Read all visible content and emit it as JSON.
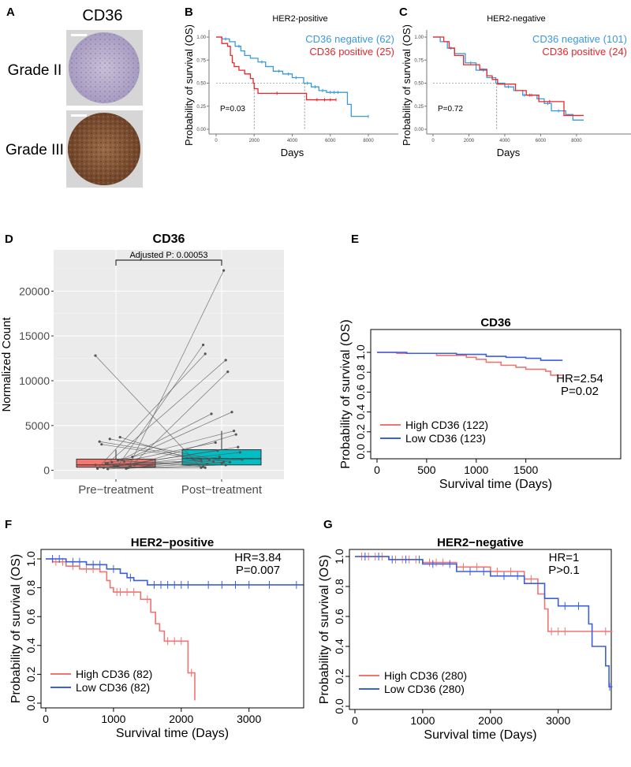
{
  "panels": {
    "A": {
      "letter": "A",
      "title": "CD36",
      "rows": [
        "Grade II",
        "Grade III"
      ]
    },
    "B": {
      "letter": "B"
    },
    "C": {
      "letter": "C"
    },
    "D": {
      "letter": "D"
    },
    "E": {
      "letter": "E"
    },
    "F": {
      "letter": "F"
    },
    "G": {
      "letter": "G"
    }
  },
  "colors": {
    "km_blue": "#3a9ad9",
    "km_red": "#e8262b",
    "surv_red": "#f07470",
    "surv_blue": "#3a5fe0",
    "box_pre": "#f8766d",
    "box_post": "#00bfc4",
    "ggplot_bg": "#ebebeb"
  },
  "chart_data": [
    {
      "id": "B",
      "type": "line",
      "subtype": "kaplan-meier",
      "title": "HER2-positive",
      "xlabel": "Days",
      "ylabel": "Probability of survival (OS)",
      "xlim": [
        0,
        8000
      ],
      "ylim": [
        0,
        1
      ],
      "xticks": [
        "0",
        "2000",
        "4000",
        "6000",
        "8000"
      ],
      "yticks": [
        "0.00",
        "0.25",
        "0.50",
        "0.75",
        "1.00"
      ],
      "annotation": "P=0.03",
      "median_lines": [
        2000,
        4650
      ],
      "series": [
        {
          "name": "CD36 negative (62)",
          "color": "#3a9ad9",
          "steps": [
            [
              0,
              1
            ],
            [
              300,
              0.98
            ],
            [
              700,
              0.95
            ],
            [
              1000,
              0.9
            ],
            [
              1300,
              0.85
            ],
            [
              1500,
              0.8
            ],
            [
              1800,
              0.77
            ],
            [
              2200,
              0.73
            ],
            [
              2600,
              0.68
            ],
            [
              3000,
              0.63
            ],
            [
              3500,
              0.6
            ],
            [
              4000,
              0.56
            ],
            [
              4600,
              0.5
            ],
            [
              5000,
              0.46
            ],
            [
              5400,
              0.42
            ],
            [
              5800,
              0.4
            ],
            [
              6800,
              0.4
            ],
            [
              6900,
              0.27
            ],
            [
              7100,
              0.14
            ],
            [
              8000,
              0.14
            ]
          ],
          "censor": [
            500,
            1200,
            2400,
            3300,
            3800,
            4200,
            4800,
            5200,
            5600,
            6000,
            6200,
            6400,
            8000
          ]
        },
        {
          "name": "CD36 positive (25)",
          "color": "#e8262b",
          "steps": [
            [
              0,
              1
            ],
            [
              300,
              0.93
            ],
            [
              600,
              0.9
            ],
            [
              750,
              0.8
            ],
            [
              850,
              0.72
            ],
            [
              950,
              0.68
            ],
            [
              1200,
              0.64
            ],
            [
              1500,
              0.6
            ],
            [
              1800,
              0.55
            ],
            [
              1950,
              0.5
            ],
            [
              2000,
              0.44
            ],
            [
              2200,
              0.39
            ],
            [
              4700,
              0.39
            ],
            [
              4750,
              0.32
            ],
            [
              6300,
              0.32
            ]
          ],
          "censor": [
            3200,
            5300,
            5700,
            6000,
            6300
          ]
        }
      ]
    },
    {
      "id": "C",
      "type": "line",
      "subtype": "kaplan-meier",
      "title": "HER2-negative",
      "xlabel": "Days",
      "ylabel": "Probability of survival (OS)",
      "xlim": [
        0,
        8400
      ],
      "ylim": [
        0,
        1
      ],
      "xticks": [
        "0",
        "2000",
        "4000",
        "6000",
        "8000"
      ],
      "yticks": [
        "0.00",
        "0.25",
        "0.50",
        "0.75",
        "1.00"
      ],
      "annotation": "P=0.72",
      "median_lines": [
        3550
      ],
      "series": [
        {
          "name": "CD36 negative (101)",
          "color": "#3a9ad9",
          "steps": [
            [
              0,
              1
            ],
            [
              400,
              0.95
            ],
            [
              800,
              0.88
            ],
            [
              1200,
              0.82
            ],
            [
              1800,
              0.72
            ],
            [
              2400,
              0.64
            ],
            [
              3000,
              0.56
            ],
            [
              3500,
              0.5
            ],
            [
              4000,
              0.46
            ],
            [
              4500,
              0.42
            ],
            [
              5000,
              0.37
            ],
            [
              5800,
              0.33
            ],
            [
              6200,
              0.28
            ],
            [
              6600,
              0.2
            ],
            [
              7400,
              0.16
            ],
            [
              7800,
              0.1
            ],
            [
              8400,
              0.1
            ]
          ],
          "censor": [
            1000,
            2100,
            2800,
            3300,
            4200,
            5100,
            5500,
            6400,
            7000
          ]
        },
        {
          "name": "CD36 positive (24)",
          "color": "#e8262b",
          "steps": [
            [
              0,
              1
            ],
            [
              600,
              0.95
            ],
            [
              900,
              0.88
            ],
            [
              1200,
              0.8
            ],
            [
              1700,
              0.7
            ],
            [
              2600,
              0.65
            ],
            [
              3000,
              0.58
            ],
            [
              3300,
              0.54
            ],
            [
              3600,
              0.49
            ],
            [
              4600,
              0.42
            ],
            [
              5200,
              0.37
            ],
            [
              5900,
              0.3
            ],
            [
              7300,
              0.15
            ],
            [
              8400,
              0.15
            ]
          ],
          "censor": [
            5400,
            6500
          ]
        }
      ]
    },
    {
      "id": "D",
      "type": "box",
      "subtype": "paired",
      "title": "CD36",
      "xlabel": "",
      "ylabel": "Normalized Count",
      "annotation": "Adjusted P: 0.00053",
      "categories": [
        "Pre−treatment",
        "Post−treatment"
      ],
      "yticks": [
        0,
        5000,
        10000,
        15000,
        20000
      ],
      "ylim": [
        -1000,
        24600
      ],
      "boxes": [
        {
          "category": "Pre−treatment",
          "q1": 350,
          "median": 600,
          "q3": 1250,
          "whisker_low": 0,
          "whisker_high": 2300,
          "color": "#f8766d"
        },
        {
          "category": "Post−treatment",
          "q1": 600,
          "median": 1300,
          "q3": 2300,
          "whisker_low": 0,
          "whisker_high": 4400,
          "color": "#00bfc4"
        }
      ],
      "pairs": [
        [
          12800,
          300
        ],
        [
          300,
          22300
        ],
        [
          500,
          14000
        ],
        [
          800,
          12300
        ],
        [
          200,
          13000
        ],
        [
          400,
          11000
        ],
        [
          3700,
          700
        ],
        [
          3500,
          900
        ],
        [
          3200,
          1200
        ],
        [
          1500,
          6500
        ],
        [
          1200,
          6300
        ],
        [
          900,
          4400
        ],
        [
          2900,
          1000
        ],
        [
          600,
          4000
        ],
        [
          1000,
          3100
        ],
        [
          400,
          2600
        ],
        [
          300,
          2200
        ],
        [
          700,
          2000
        ],
        [
          200,
          1500
        ],
        [
          500,
          1200
        ],
        [
          800,
          800
        ],
        [
          600,
          1100
        ],
        [
          300,
          900
        ],
        [
          1100,
          400
        ],
        [
          150,
          600
        ],
        [
          250,
          300
        ]
      ]
    },
    {
      "id": "E",
      "type": "line",
      "subtype": "kaplan-meier",
      "title": "CD36",
      "xlabel": "Survival time (Days)",
      "ylabel": "Probability of survival (OS)",
      "xlim": [
        0,
        1900
      ],
      "ylim": [
        0,
        1
      ],
      "xticks": [
        "0",
        "500",
        "1000",
        "1500"
      ],
      "yticks": [
        "0.0",
        "0.2",
        "0.4",
        "0.6",
        "0.8",
        "1.0"
      ],
      "annotation": [
        "HR=2.54",
        "P=0.02"
      ],
      "series": [
        {
          "name": "High CD36 (122)",
          "color": "#f07470",
          "steps": [
            [
              0,
              1
            ],
            [
              200,
              0.99
            ],
            [
              600,
              0.97
            ],
            [
              900,
              0.95
            ],
            [
              1000,
              0.93
            ],
            [
              1100,
              0.9
            ],
            [
              1250,
              0.87
            ],
            [
              1400,
              0.85
            ],
            [
              1500,
              0.83
            ],
            [
              1700,
              0.81
            ],
            [
              1750,
              0.77
            ],
            [
              1870,
              0.77
            ]
          ],
          "censor": []
        },
        {
          "name": "Low CD36 (123)",
          "color": "#3a5fe0",
          "steps": [
            [
              0,
              1
            ],
            [
              300,
              0.99
            ],
            [
              800,
              0.98
            ],
            [
              1100,
              0.96
            ],
            [
              1300,
              0.95
            ],
            [
              1500,
              0.94
            ],
            [
              1650,
              0.92
            ],
            [
              1870,
              0.92
            ]
          ],
          "censor": []
        }
      ]
    },
    {
      "id": "F",
      "type": "line",
      "subtype": "kaplan-meier",
      "title": "HER2−positive",
      "xlabel": "Survival time (Days)",
      "ylabel": "Probability of survival (OS)",
      "xlim": [
        0,
        3900
      ],
      "ylim": [
        0,
        1
      ],
      "xticks": [
        "0",
        "1000",
        "2000",
        "3000"
      ],
      "yticks": [
        "0.0",
        "0.2",
        "0.4",
        "0.6",
        "0.8",
        "1.0"
      ],
      "annotation": [
        "HR=3.84",
        "P=0.007"
      ],
      "series": [
        {
          "name": "High CD36 (82)",
          "color": "#f07470",
          "steps": [
            [
              0,
              1
            ],
            [
              100,
              0.98
            ],
            [
              300,
              0.95
            ],
            [
              500,
              0.93
            ],
            [
              800,
              0.91
            ],
            [
              900,
              0.85
            ],
            [
              950,
              0.8
            ],
            [
              1000,
              0.77
            ],
            [
              1400,
              0.72
            ],
            [
              1550,
              0.63
            ],
            [
              1620,
              0.55
            ],
            [
              1680,
              0.5
            ],
            [
              1750,
              0.43
            ],
            [
              2050,
              0.43
            ],
            [
              2100,
              0.21
            ],
            [
              2200,
              0.02
            ]
          ],
          "censor": [
            150,
            250,
            400,
            600,
            700,
            1050,
            1100,
            1200,
            1300,
            1500,
            1800,
            1900,
            2000,
            2150
          ]
        },
        {
          "name": "Low CD36 (82)",
          "color": "#3a5fe0",
          "steps": [
            [
              0,
              1
            ],
            [
              300,
              0.98
            ],
            [
              600,
              0.96
            ],
            [
              900,
              0.93
            ],
            [
              1100,
              0.9
            ],
            [
              1200,
              0.87
            ],
            [
              1300,
              0.85
            ],
            [
              1500,
              0.82
            ],
            [
              3800,
              0.82
            ]
          ],
          "censor": [
            100,
            200,
            400,
            500,
            700,
            800,
            1000,
            1250,
            1600,
            1700,
            1800,
            1900,
            2000,
            2100,
            2400,
            2600,
            2800,
            3000,
            3300,
            3700
          ]
        }
      ]
    },
    {
      "id": "G",
      "type": "line",
      "subtype": "kaplan-meier",
      "title": "HER2−negative",
      "xlabel": "Survival time (Days)",
      "ylabel": "Probability of survival (OS)",
      "xlim": [
        0,
        3900
      ],
      "ylim": [
        0,
        1
      ],
      "xticks": [
        "0",
        "1000",
        "2000",
        "3000"
      ],
      "yticks": [
        "0.0",
        "0.2",
        "0.4",
        "0.6",
        "0.8",
        "1.0"
      ],
      "annotation": [
        "HR=1",
        "P>0.1"
      ],
      "series": [
        {
          "name": "High CD36 (280)",
          "color": "#f07470",
          "steps": [
            [
              0,
              1
            ],
            [
              500,
              0.98
            ],
            [
              1000,
              0.96
            ],
            [
              1500,
              0.93
            ],
            [
              2000,
              0.9
            ],
            [
              2500,
              0.85
            ],
            [
              2700,
              0.75
            ],
            [
              2800,
              0.65
            ],
            [
              2850,
              0.5
            ],
            [
              3800,
              0.5
            ]
          ],
          "censor": [
            100,
            200,
            300,
            400,
            600,
            700,
            800,
            900,
            1100,
            1200,
            1300,
            1600,
            1800,
            2100,
            2300,
            2600,
            2900,
            3000,
            3100,
            3700
          ]
        },
        {
          "name": "Low CD36 (280)",
          "color": "#3a5fe0",
          "steps": [
            [
              0,
              1
            ],
            [
              500,
              0.98
            ],
            [
              1000,
              0.95
            ],
            [
              1500,
              0.9
            ],
            [
              2000,
              0.87
            ],
            [
              2500,
              0.82
            ],
            [
              2800,
              0.72
            ],
            [
              3000,
              0.67
            ],
            [
              3450,
              0.55
            ],
            [
              3500,
              0.4
            ],
            [
              3700,
              0.27
            ],
            [
              3750,
              0.13
            ],
            [
              3800,
              0.13
            ]
          ],
          "censor": [
            150,
            350,
            550,
            750,
            950,
            1150,
            1400,
            1700,
            1900,
            2200,
            2400,
            3100,
            3300,
            3760
          ]
        }
      ]
    }
  ]
}
